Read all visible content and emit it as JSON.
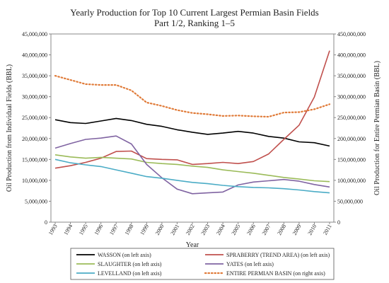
{
  "chart_data": {
    "type": "line",
    "title": "Yearly Production for Top 10 Current Largest Permian Basin Fields",
    "subtitle": "Part 1/2, Ranking 1–5",
    "xlabel": "Year",
    "ylabel_left": "Oil Production from Individual Fields (BBL)",
    "ylabel_right": "Oil Production for Entire Permian Basin (BBL)",
    "ylim_left": [
      0,
      45000000
    ],
    "ylim_right": [
      0,
      450000000
    ],
    "y_ticks_left": [
      "0",
      "5,000,000",
      "10,000,000",
      "15,000,000",
      "20,000,000",
      "25,000,000",
      "30,000,000",
      "35,000,000",
      "40,000,000",
      "45,000,000"
    ],
    "y_ticks_right": [
      "0",
      "50,000,000",
      "100,000,000",
      "150,000,000",
      "200,000,000",
      "250,000,000",
      "300,000,000",
      "350,000,000",
      "400,000,000",
      "450,000,000"
    ],
    "x": [
      "1993",
      "1994",
      "1995",
      "1996",
      "1997",
      "1998",
      "1999",
      "2000",
      "2001",
      "2002",
      "2003",
      "2004",
      "2005",
      "2006",
      "2007",
      "2008",
      "2009",
      "2010",
      "2011"
    ],
    "grid": false,
    "legend_position": "bottom",
    "series": [
      {
        "name": "WASSON (on left axis)",
        "axis": "left",
        "color": "#000000",
        "dash": "solid",
        "values": [
          24500000,
          23800000,
          23600000,
          24200000,
          24800000,
          24300000,
          23400000,
          22900000,
          22100000,
          21500000,
          21000000,
          21300000,
          21700000,
          21300000,
          20500000,
          20100000,
          19200000,
          19000000,
          18200000
        ]
      },
      {
        "name": "SPRABERRY (TREND AREA) (on left axis)",
        "axis": "left",
        "color": "#c0504d",
        "dash": "solid",
        "values": [
          12900000,
          13500000,
          14300000,
          15300000,
          16900000,
          17000000,
          15200000,
          15000000,
          14900000,
          13800000,
          14000000,
          14300000,
          14000000,
          14500000,
          16300000,
          19800000,
          23200000,
          29900000,
          41000000
        ]
      },
      {
        "name": "SLAUGHTER (on left axis)",
        "axis": "left",
        "color": "#9bbb59",
        "dash": "solid",
        "values": [
          16100000,
          15600000,
          15300000,
          15500000,
          15300000,
          15100000,
          14300000,
          14000000,
          13800000,
          13400000,
          13100000,
          12500000,
          12100000,
          11700000,
          11200000,
          10700000,
          10300000,
          9900000,
          9700000
        ]
      },
      {
        "name": "YATES (on left axis)",
        "axis": "left",
        "color": "#8064a2",
        "dash": "solid",
        "values": [
          17700000,
          18800000,
          19800000,
          20100000,
          20600000,
          18700000,
          13800000,
          10600000,
          7900000,
          6800000,
          7000000,
          7200000,
          8900000,
          9600000,
          9900000,
          10200000,
          9800000,
          9000000,
          8400000
        ]
      },
      {
        "name": "LEVELLAND (on left axis)",
        "axis": "left",
        "color": "#4bacc6",
        "dash": "solid",
        "values": [
          15000000,
          14200000,
          13700000,
          13300000,
          12500000,
          11700000,
          10900000,
          10500000,
          10000000,
          9500000,
          9200000,
          8800000,
          8500000,
          8300000,
          8200000,
          8000000,
          7700000,
          7300000,
          7000000
        ]
      },
      {
        "name": "ENTIRE PERMIAN BASIN (on right axis)",
        "axis": "right",
        "color": "#e07b39",
        "dash": "dotted",
        "values": [
          350000000,
          340000000,
          330000000,
          328000000,
          328000000,
          315000000,
          286000000,
          278000000,
          268000000,
          261000000,
          258000000,
          254000000,
          255000000,
          253000000,
          252000000,
          262000000,
          263000000,
          270000000,
          282000000
        ]
      }
    ]
  }
}
